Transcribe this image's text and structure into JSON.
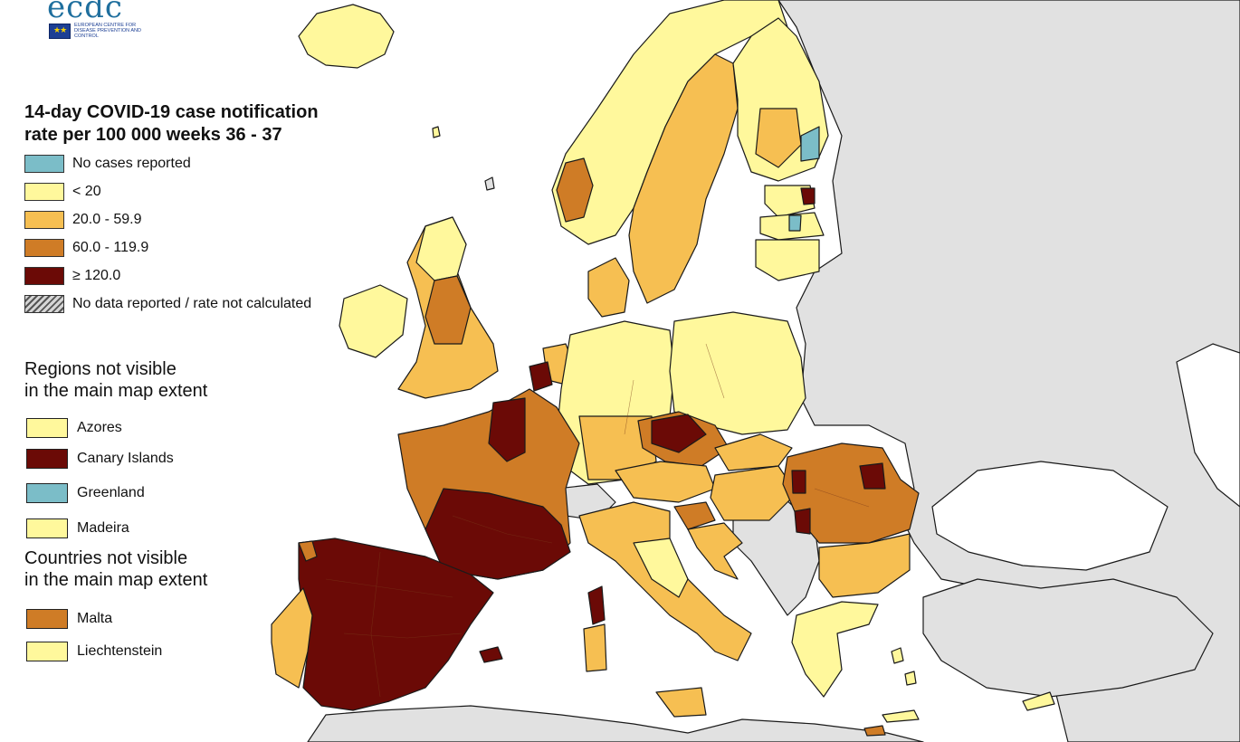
{
  "logo": {
    "wordmark": "ecdc",
    "flag_symbol": "★★",
    "subtitle": "EUROPEAN CENTRE FOR DISEASE PREVENTION AND CONTROL"
  },
  "legend": {
    "title": "14-day COVID-19 case notification\nrate per 100 000 weeks 36 - 37",
    "classes": [
      {
        "label": "No cases reported",
        "color": "#7bbdc8"
      },
      {
        "label": "< 20",
        "color": "#fff89c"
      },
      {
        "label": "20.0 - 59.9",
        "color": "#f6bf52"
      },
      {
        "label": "60.0 - 119.9",
        "color": "#cf7c26"
      },
      {
        "label": "≥ 120.0",
        "color": "#6b0a06"
      },
      {
        "label": "No data reported / rate not calculated",
        "color": "hatched"
      }
    ]
  },
  "regions_not_visible": {
    "title": "Regions not visible\nin the main map extent",
    "items": [
      {
        "label": "Azores",
        "color": "#fff89c"
      },
      {
        "label": "Canary Islands",
        "color": "#6b0a06"
      },
      {
        "label": "Greenland",
        "color": "#7bbdc8"
      },
      {
        "label": "Madeira",
        "color": "#fff89c"
      }
    ]
  },
  "countries_not_visible": {
    "title": "Countries not visible\nin the main map extent",
    "items": [
      {
        "label": "Malta",
        "color": "#cf7c26"
      },
      {
        "label": "Liechtenstein",
        "color": "#fff89c"
      }
    ]
  },
  "map_colors": {
    "sea": "#ffffff",
    "non_eu": "#e1e1e1",
    "border": "#1a1a1a"
  }
}
